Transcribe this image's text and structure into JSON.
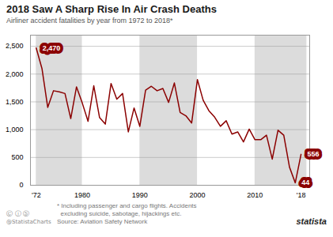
{
  "chart_data": {
    "type": "line",
    "title": "2018 Saw A Sharp Rise In Air Crash Deaths",
    "subtitle": "Airliner accident fatalities by year from 1972 to 2018*",
    "x": [
      1972,
      1973,
      1974,
      1975,
      1976,
      1977,
      1978,
      1979,
      1980,
      1981,
      1982,
      1983,
      1984,
      1985,
      1986,
      1987,
      1988,
      1989,
      1990,
      1991,
      1992,
      1993,
      1994,
      1995,
      1996,
      1997,
      1998,
      1999,
      2000,
      2001,
      2002,
      2003,
      2004,
      2005,
      2006,
      2007,
      2008,
      2009,
      2010,
      2011,
      2012,
      2013,
      2014,
      2015,
      2016,
      2017,
      2018
    ],
    "values": [
      2470,
      2100,
      1400,
      1700,
      1680,
      1650,
      1200,
      1770,
      1480,
      1150,
      1790,
      1220,
      1100,
      1830,
      1550,
      1650,
      960,
      1390,
      1060,
      1710,
      1780,
      1700,
      1740,
      1490,
      1840,
      1310,
      1250,
      1120,
      1900,
      1530,
      1340,
      1225,
      1060,
      1160,
      920,
      960,
      780,
      1010,
      820,
      820,
      900,
      470,
      990,
      900,
      325,
      44,
      556
    ],
    "color": "#8B0000",
    "xlim": [
      1971,
      2019.5
    ],
    "xticks": [
      {
        "value": 1972,
        "label": "'72"
      },
      1980,
      1990,
      2000,
      2010,
      {
        "value": 2018,
        "label": "'18"
      }
    ],
    "ylim": [
      0,
      2700
    ],
    "yticks": [
      0,
      500,
      {
        "value": 1000,
        "label": "1,000"
      },
      {
        "value": 1500,
        "label": "1,500"
      },
      {
        "value": 2000,
        "label": "2,000"
      },
      {
        "value": 2500,
        "label": "2,500"
      }
    ],
    "grid": true,
    "bands": [
      [
        1972,
        1980
      ],
      [
        1990,
        2000
      ],
      [
        2010,
        2019
      ]
    ],
    "band_color": "#dcdcdc",
    "annotations": [
      {
        "label": "2,470",
        "x": 1972,
        "y": 2470
      },
      {
        "label": "44",
        "x": 2017,
        "y": 44
      },
      {
        "label": "556",
        "x": 2018,
        "y": 556
      }
    ],
    "annotation_color": "#8B0000",
    "footnotes": [
      "* Including passenger and cargo flights. Accidents",
      "  excluding suicide, sabotage, hijackings etc.",
      "Source: Aviation Safety Network"
    ],
    "icons": "Ⓒ ⓘ Ⓢ",
    "handle": "@StatistaCharts",
    "logo": "statista"
  }
}
